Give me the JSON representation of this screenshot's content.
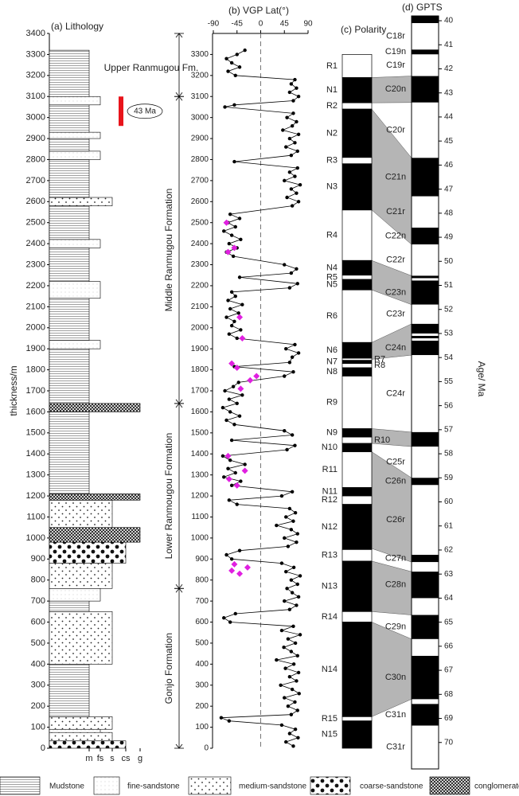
{
  "chart_data": [
    {
      "type": "lithology",
      "title": "(a) Lithology",
      "y_label": "thickness/m",
      "ylim": [
        0,
        3400
      ],
      "yticks": [
        0,
        100,
        200,
        300,
        400,
        500,
        600,
        700,
        800,
        900,
        1000,
        1100,
        1200,
        1300,
        1400,
        1500,
        1600,
        1700,
        1800,
        1900,
        2000,
        2100,
        2200,
        2300,
        2400,
        2500,
        2600,
        2700,
        2800,
        2900,
        3000,
        3100,
        3200,
        3300,
        3400
      ],
      "grain_sizes": [
        "m",
        "fs",
        "s",
        "cs",
        "g"
      ],
      "legend": [
        "Mudstone",
        "fine-sandstone",
        "medium-sandstone",
        "coarse-sandstone",
        "conglomerate"
      ],
      "layers": [
        [
          0,
          35,
          3
        ],
        [
          35,
          75,
          2
        ],
        [
          75,
          90,
          1
        ],
        [
          90,
          150,
          2
        ],
        [
          150,
          400,
          0
        ],
        [
          400,
          650,
          2
        ],
        [
          650,
          700,
          0
        ],
        [
          700,
          760,
          1
        ],
        [
          760,
          880,
          2
        ],
        [
          880,
          980,
          3
        ],
        [
          980,
          1050,
          4
        ],
        [
          1050,
          1180,
          2
        ],
        [
          1180,
          1210,
          4
        ],
        [
          1210,
          1600,
          0
        ],
        [
          1600,
          1640,
          4
        ],
        [
          1640,
          1900,
          0
        ],
        [
          1900,
          1940,
          1
        ],
        [
          1940,
          2140,
          0
        ],
        [
          2140,
          2220,
          1
        ],
        [
          2220,
          2380,
          0
        ],
        [
          2380,
          2420,
          1
        ],
        [
          2420,
          2580,
          0
        ],
        [
          2580,
          2620,
          2
        ],
        [
          2620,
          2800,
          0
        ],
        [
          2800,
          2840,
          1
        ],
        [
          2840,
          2900,
          0
        ],
        [
          2900,
          2930,
          1
        ],
        [
          2930,
          3060,
          0
        ],
        [
          3060,
          3100,
          1
        ],
        [
          3100,
          3320,
          0
        ]
      ],
      "age_marker": {
        "label": "43 Ma",
        "base": 2960,
        "top": 3100,
        "color": "#e8141b"
      },
      "formations": [
        {
          "name": "Gonjo Formation",
          "base": 0,
          "top": 760
        },
        {
          "name": "Lower Ranmougou Formation",
          "base": 760,
          "top": 1640
        },
        {
          "name": "Middle Ranmugou Formation",
          "base": 1640,
          "top": 3100
        },
        {
          "name": "Upper Ranmugou Fm.",
          "base": 3100,
          "top": 3400
        }
      ]
    },
    {
      "type": "scatter",
      "title": "(b) VGP Lat(°)",
      "xlim": [
        -90,
        90
      ],
      "xticks": [
        -90,
        -45,
        0,
        45,
        90
      ],
      "reference_x": 0,
      "ylim": [
        0,
        3400
      ],
      "yticks": [
        0,
        100,
        200,
        300,
        400,
        500,
        600,
        700,
        800,
        900,
        1000,
        1100,
        1200,
        1300,
        1400,
        1500,
        1600,
        1700,
        1800,
        1900,
        2000,
        2100,
        2200,
        2300,
        2400,
        2500,
        2600,
        2700,
        2800,
        2900,
        3000,
        3100,
        3200,
        3300
      ],
      "series": [
        {
          "color": "#000000",
          "marker": "circle",
          "line": true,
          "x": [
            62,
            48,
            71,
            55,
            66,
            40,
            -60,
            -75,
            58,
            70,
            52,
            65,
            45,
            73,
            60,
            38,
            68,
            55,
            72,
            47,
            63,
            30,
            70,
            58,
            44,
            66,
            52,
            75,
            40,
            62,
            -58,
            -70,
            -48,
            55,
            68,
            45,
            72,
            60,
            50,
            70,
            58,
            75,
            48,
            63,
            40,
            -55,
            -65,
            -40,
            52,
            68,
            45,
            70,
            58,
            30,
            62,
            48,
            66,
            55,
            -45,
            -60,
            40,
            60,
            -55,
            -38,
            -70,
            -48,
            -62,
            -30,
            -58,
            -72,
            50,
            65,
            -55,
            60,
            45,
            -50,
            -65,
            -40,
            -58,
            -72,
            -45,
            -60,
            -35,
            -68,
            -52,
            -42,
            45,
            62,
            -50,
            55,
            60,
            72,
            48,
            65,
            -45,
            -60,
            -38,
            -55,
            -50,
            -65,
            -42,
            -58,
            -35,
            -62,
            -48,
            -55,
            55,
            70,
            -40,
            58,
            68,
            45,
            -52,
            -65,
            -45,
            -60,
            -38,
            -55,
            -70,
            -48,
            -62,
            -40,
            -58,
            60,
            72,
            50,
            68,
            58,
            75,
            45,
            65,
            55,
            70,
            -50,
            58,
            70,
            48,
            65,
            55,
            72,
            42,
            60,
            68,
            50,
            62,
            -68,
            -50,
            62,
            72,
            55,
            68,
            58,
            65,
            -48,
            -62,
            -40,
            -55,
            -65,
            -45,
            -30
          ],
          "values": [
            10,
            30,
            50,
            70,
            90,
            110,
            130,
            145,
            160,
            180,
            200,
            220,
            240,
            260,
            280,
            300,
            320,
            340,
            360,
            380,
            400,
            420,
            440,
            460,
            480,
            500,
            520,
            540,
            560,
            580,
            600,
            620,
            640,
            660,
            680,
            700,
            720,
            740,
            760,
            780,
            800,
            820,
            840,
            860,
            880,
            900,
            920,
            940,
            960,
            980,
            1000,
            1020,
            1040,
            1060,
            1080,
            1100,
            1120,
            1140,
            1160,
            1180,
            1200,
            1220,
            1250,
            1270,
            1290,
            1310,
            1330,
            1350,
            1370,
            1390,
            1420,
            1440,
            1465,
            1490,
            1510,
            1540,
            1560,
            1580,
            1600,
            1620,
            1640,
            1660,
            1680,
            1700,
            1720,
            1740,
            1770,
            1790,
            1815,
            1835,
            1860,
            1880,
            1900,
            1920,
            1950,
            1970,
            1990,
            2010,
            2030,
            2050,
            2070,
            2090,
            2110,
            2130,
            2150,
            2170,
            2190,
            2210,
            2240,
            2260,
            2280,
            2300,
            2340,
            2360,
            2380,
            2400,
            2420,
            2440,
            2460,
            2480,
            2500,
            2520,
            2540,
            2580,
            2600,
            2620,
            2640,
            2660,
            2680,
            2700,
            2720,
            2740,
            2760,
            2790,
            2820,
            2840,
            2860,
            2880,
            2900,
            2920,
            2940,
            2960,
            2980,
            3000,
            3020,
            3050,
            3060,
            3080,
            3100,
            3120,
            3140,
            3160,
            3180,
            3200,
            3220,
            3240,
            3260,
            3280,
            3300,
            3320
          ]
        },
        {
          "color": "#e020e0",
          "marker": "diamond",
          "line": false,
          "x": [
            -40,
            -55,
            -25,
            -50,
            -45,
            -60,
            -30,
            -62,
            -38,
            -20,
            -8,
            -45,
            -55,
            -35,
            -40,
            -62,
            -50,
            -65
          ],
          "values": [
            830,
            845,
            860,
            875,
            1250,
            1280,
            1320,
            1390,
            1710,
            1750,
            1770,
            1810,
            1830,
            1950,
            2050,
            2360,
            2380,
            2500
          ]
        }
      ]
    },
    {
      "type": "polarity",
      "title": "(c) Polarity",
      "zones": [
        {
          "label": "R1",
          "base": 3190,
          "top": 3300,
          "normal": false
        },
        {
          "label": "N1",
          "base": 3070,
          "top": 3190,
          "normal": true
        },
        {
          "label": "R2",
          "base": 3040,
          "top": 3070,
          "normal": false
        },
        {
          "label": "N2",
          "base": 2810,
          "top": 3040,
          "normal": true
        },
        {
          "label": "R3",
          "base": 2780,
          "top": 2810,
          "normal": false
        },
        {
          "label": "N3",
          "base": 2560,
          "top": 2780,
          "normal": true
        },
        {
          "label": "R4",
          "base": 2320,
          "top": 2560,
          "normal": false
        },
        {
          "label": "N4",
          "base": 2250,
          "top": 2320,
          "normal": true
        },
        {
          "label": "R5",
          "base": 2230,
          "top": 2250,
          "normal": false
        },
        {
          "label": "N5",
          "base": 2180,
          "top": 2230,
          "normal": true
        },
        {
          "label": "R6",
          "base": 1930,
          "top": 2180,
          "normal": false
        },
        {
          "label": "N6",
          "base": 1855,
          "top": 1930,
          "normal": true
        },
        {
          "label": "R7",
          "base": 1845,
          "top": 1855,
          "normal": false
        },
        {
          "label": "N7",
          "base": 1830,
          "top": 1845,
          "normal": true
        },
        {
          "label": "R8",
          "base": 1810,
          "top": 1830,
          "normal": false
        },
        {
          "label": "N8",
          "base": 1770,
          "top": 1810,
          "normal": true
        },
        {
          "label": "R9",
          "base": 1520,
          "top": 1770,
          "normal": false
        },
        {
          "label": "N9",
          "base": 1480,
          "top": 1520,
          "normal": true
        },
        {
          "label": "R10",
          "base": 1450,
          "top": 1480,
          "normal": false
        },
        {
          "label": "N10",
          "base": 1410,
          "top": 1450,
          "normal": true
        },
        {
          "label": "R11",
          "base": 1240,
          "top": 1410,
          "normal": false
        },
        {
          "label": "N11",
          "base": 1200,
          "top": 1240,
          "normal": true
        },
        {
          "label": "R12",
          "base": 1160,
          "top": 1200,
          "normal": false
        },
        {
          "label": "N12",
          "base": 945,
          "top": 1160,
          "normal": true
        },
        {
          "label": "R13",
          "base": 890,
          "top": 945,
          "normal": false
        },
        {
          "label": "N13",
          "base": 650,
          "top": 890,
          "normal": true
        },
        {
          "label": "R14",
          "base": 600,
          "top": 650,
          "normal": false
        },
        {
          "label": "N14",
          "base": 150,
          "top": 600,
          "normal": true
        },
        {
          "label": "R15",
          "base": 130,
          "top": 150,
          "normal": false
        },
        {
          "label": "N15",
          "base": 0,
          "top": 130,
          "normal": true
        }
      ],
      "correlations": [
        [
          3190,
          3070,
          42.3,
          43.4
        ],
        [
          3040,
          2560,
          45.7,
          49.3
        ],
        [
          2320,
          2180,
          50.6,
          51.8
        ],
        [
          1930,
          1850,
          52.6,
          53.9
        ],
        [
          1520,
          1450,
          57.1,
          57.7
        ],
        [
          1410,
          950,
          59.0,
          62.5
        ],
        [
          890,
          650,
          62.9,
          64.7
        ],
        [
          600,
          150,
          65.7,
          68.2
        ]
      ]
    },
    {
      "type": "gpts",
      "title": "(d) GPTS",
      "y_label": "Age/ Ma",
      "ylim": [
        39.8,
        71.1
      ],
      "yticks": [
        40,
        41,
        42,
        43,
        44,
        45,
        46,
        47,
        48,
        49,
        50,
        51,
        52,
        53,
        54,
        55,
        56,
        57,
        58,
        59,
        60,
        61,
        62,
        63,
        64,
        65,
        66,
        67,
        68,
        69,
        70
      ],
      "chrons": [
        {
          "name": null,
          "top": 39.8,
          "base": 40.1,
          "normal": true
        },
        {
          "name": "C18r",
          "top": 40.1,
          "base": 41.2,
          "normal": false
        },
        {
          "name": "C19n",
          "top": 41.2,
          "base": 41.4,
          "normal": true
        },
        {
          "name": "C19r",
          "top": 41.4,
          "base": 42.3,
          "normal": false
        },
        {
          "name": "C20n",
          "top": 42.3,
          "base": 43.4,
          "normal": true
        },
        {
          "name": "C20r",
          "top": 43.4,
          "base": 45.7,
          "normal": false
        },
        {
          "name": "C21n",
          "top": 45.7,
          "base": 47.3,
          "normal": true
        },
        {
          "name": "C21r",
          "top": 47.3,
          "base": 48.6,
          "normal": false
        },
        {
          "name": "C22n",
          "top": 48.6,
          "base": 49.3,
          "normal": true
        },
        {
          "name": "C22r",
          "top": 49.3,
          "base": 50.6,
          "normal": false
        },
        {
          "name": null,
          "top": 50.6,
          "base": 50.7,
          "normal": true
        },
        {
          "name": "C23n",
          "top": 50.8,
          "base": 51.8,
          "normal": true
        },
        {
          "name": "C23r",
          "top": 51.8,
          "base": 52.6,
          "normal": false
        },
        {
          "name": null,
          "top": 52.6,
          "base": 53.0,
          "normal": true
        },
        {
          "name": null,
          "top": 53.1,
          "base": 53.2,
          "normal": true
        },
        {
          "name": "C24n",
          "top": 53.3,
          "base": 53.9,
          "normal": true
        },
        {
          "name": "C24r",
          "top": 53.9,
          "base": 57.1,
          "normal": false
        },
        {
          "name": null,
          "top": 57.1,
          "base": 57.7,
          "normal": true
        },
        {
          "name": "C25r",
          "top": 57.7,
          "base": 59.0,
          "normal": false
        },
        {
          "name": "C26n",
          "top": 59.0,
          "base": 59.3,
          "normal": true
        },
        {
          "name": "C26r",
          "top": 59.3,
          "base": 62.2,
          "normal": false
        },
        {
          "name": "C27n",
          "top": 62.2,
          "base": 62.5,
          "normal": true
        },
        {
          "name": "C28n",
          "top": 62.9,
          "base": 64.0,
          "normal": true
        },
        {
          "name": "C29n",
          "top": 64.7,
          "base": 65.7,
          "normal": true
        },
        {
          "name": "C30n",
          "top": 66.4,
          "base": 68.2,
          "normal": true
        },
        {
          "name": "C31n",
          "top": 68.4,
          "base": 69.3,
          "normal": true
        },
        {
          "name": "C31r",
          "top": 69.3,
          "base": 71.1,
          "normal": false
        }
      ]
    }
  ]
}
